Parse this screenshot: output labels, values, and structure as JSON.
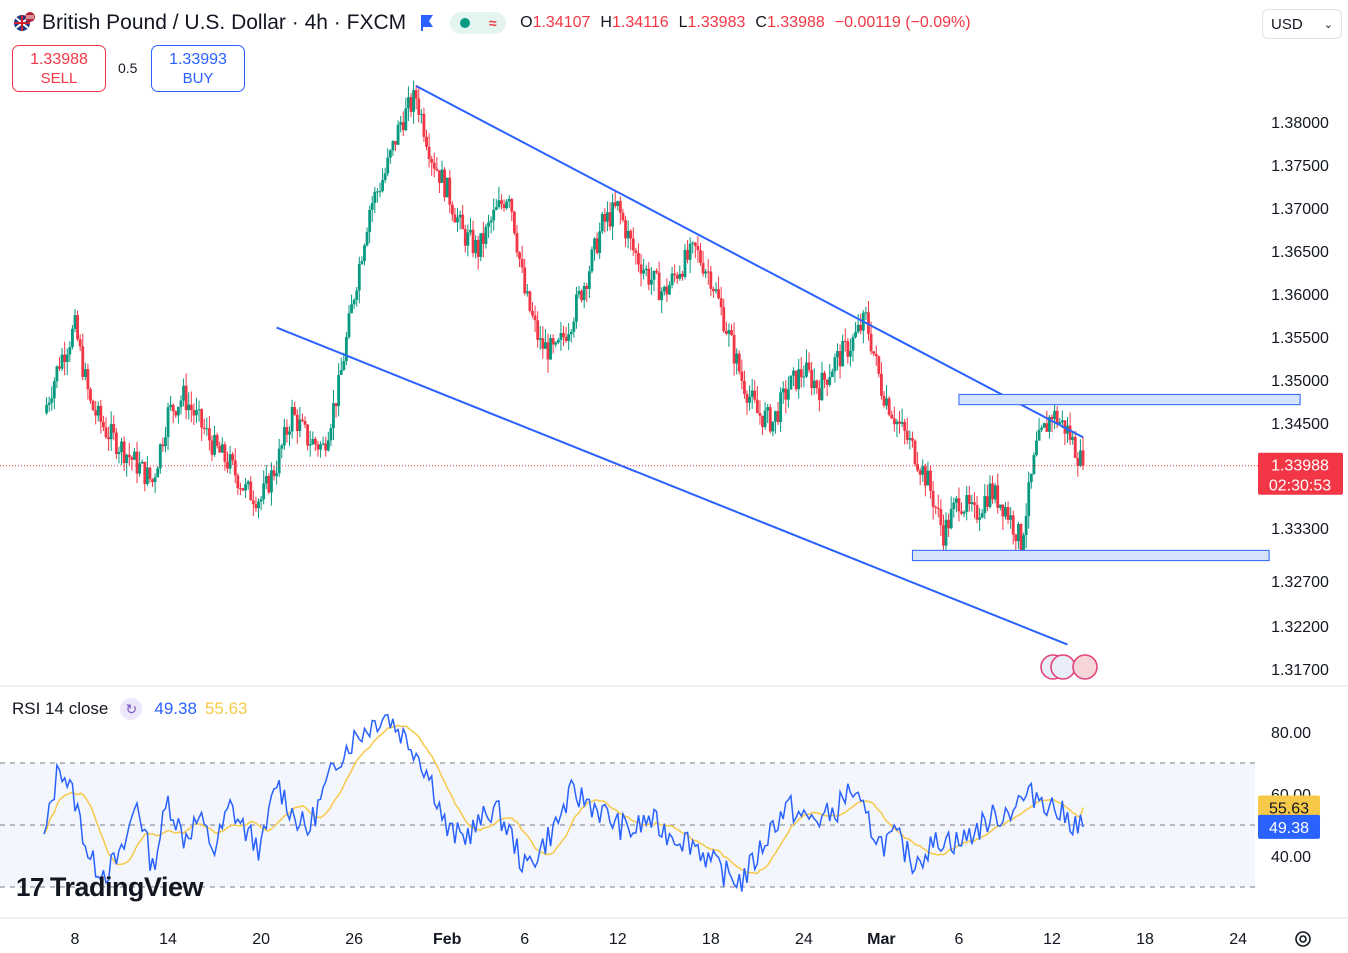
{
  "header": {
    "title": "British Pound / U.S. Dollar · 4h · FXCM",
    "ohlc": {
      "o_label": "O",
      "o": "1.34107",
      "h_label": "H",
      "h": "1.34116",
      "l_label": "L",
      "l": "1.33983",
      "c_label": "C",
      "c": "1.33988",
      "change": "−0.00119 (−0.09%)"
    },
    "icons": [
      "gb-us-flag-icon",
      "flag-marker-icon",
      "market-open-dot-icon",
      "wave-icon"
    ]
  },
  "currency_select": {
    "value": "USD"
  },
  "trade": {
    "sell_price": "1.33988",
    "sell_label": "SELL",
    "spread": "0.5",
    "buy_price": "1.33993",
    "buy_label": "BUY"
  },
  "price_axis": {
    "ticks": [
      "1.38000",
      "1.37500",
      "1.37000",
      "1.36500",
      "1.36000",
      "1.35500",
      "1.35000",
      "1.34500",
      "1.33300",
      "1.32700",
      "1.32200",
      "1.31700"
    ],
    "last_price": "1.33988",
    "countdown": "02:30:53"
  },
  "time_axis": {
    "ticks": [
      "8",
      "14",
      "20",
      "26",
      "Feb",
      "6",
      "12",
      "18",
      "24",
      "Mar",
      "6",
      "12",
      "18",
      "24"
    ]
  },
  "rsi": {
    "label": "RSI 14 close",
    "value": "49.38",
    "ma_value": "55.63",
    "ticks": [
      "80.00",
      "60.00",
      "40.00"
    ],
    "levels": [
      70,
      50,
      30
    ],
    "colors": {
      "rsi": "#2962ff",
      "ma": "#f7c948"
    }
  },
  "branding": {
    "logo_text": "TradingView"
  },
  "colors": {
    "up": "#089981",
    "down": "#f23645",
    "trendline": "#2962ff",
    "zone_fill": "#d6e4fb",
    "last_price": "#f23645"
  },
  "chart_data": {
    "type": "candlestick",
    "symbol": "GBPUSD",
    "interval": "4h",
    "ylim": [
      1.313,
      1.388
    ],
    "x_range": [
      "2025-01-06",
      "2025-03-25"
    ],
    "last_close": 1.33988,
    "trendlines": [
      {
        "from": [
          "2025-01-30",
          1.3842
        ],
        "to": [
          "2025-03-14",
          1.3432
        ]
      },
      {
        "from": [
          "2025-01-21",
          1.356
        ],
        "to": [
          "2025-03-13",
          1.319
        ]
      }
    ],
    "zones": [
      {
        "from": "2025-03-06",
        "to": "2025-03-28",
        "top": 1.3482,
        "bottom": 1.347
      },
      {
        "from": "2025-03-03",
        "to": "2025-03-26",
        "top": 1.33,
        "bottom": 1.3288
      }
    ],
    "close_path": [
      [
        "2025-01-06",
        1.346
      ],
      [
        "2025-01-07",
        1.352
      ],
      [
        "2025-01-08",
        1.356
      ],
      [
        "2025-01-09",
        1.347
      ],
      [
        "2025-01-10",
        1.344
      ],
      [
        "2025-01-11",
        1.342
      ],
      [
        "2025-01-12",
        1.34
      ],
      [
        "2025-01-13",
        1.338
      ],
      [
        "2025-01-14",
        1.346
      ],
      [
        "2025-01-15",
        1.348
      ],
      [
        "2025-01-16",
        1.345
      ],
      [
        "2025-01-17",
        1.342
      ],
      [
        "2025-01-18",
        1.34
      ],
      [
        "2025-01-19",
        1.337
      ],
      [
        "2025-01-20",
        1.336
      ],
      [
        "2025-01-21",
        1.34
      ],
      [
        "2025-01-22",
        1.346
      ],
      [
        "2025-01-23",
        1.343
      ],
      [
        "2025-01-24",
        1.342
      ],
      [
        "2025-01-25",
        1.349
      ],
      [
        "2025-01-26",
        1.36
      ],
      [
        "2025-01-27",
        1.37
      ],
      [
        "2025-01-28",
        1.374
      ],
      [
        "2025-01-29",
        1.38
      ],
      [
        "2025-01-30",
        1.383
      ],
      [
        "2025-01-31",
        1.376
      ],
      [
        "2025-02-01",
        1.372
      ],
      [
        "2025-02-02",
        1.367
      ],
      [
        "2025-02-03",
        1.365
      ],
      [
        "2025-02-04",
        1.369
      ],
      [
        "2025-02-05",
        1.372
      ],
      [
        "2025-02-06",
        1.36
      ],
      [
        "2025-02-07",
        1.354
      ],
      [
        "2025-02-08",
        1.353
      ],
      [
        "2025-02-09",
        1.357
      ],
      [
        "2025-02-10",
        1.362
      ],
      [
        "2025-02-11",
        1.368
      ],
      [
        "2025-02-12",
        1.37
      ],
      [
        "2025-02-13",
        1.365
      ],
      [
        "2025-02-14",
        1.362
      ],
      [
        "2025-02-15",
        1.36
      ],
      [
        "2025-02-16",
        1.363
      ],
      [
        "2025-02-17",
        1.365
      ],
      [
        "2025-02-18",
        1.362
      ],
      [
        "2025-02-19",
        1.356
      ],
      [
        "2025-02-20",
        1.35
      ],
      [
        "2025-02-21",
        1.346
      ],
      [
        "2025-02-22",
        1.345
      ],
      [
        "2025-02-23",
        1.349
      ],
      [
        "2025-02-24",
        1.351
      ],
      [
        "2025-02-25",
        1.349
      ],
      [
        "2025-02-26",
        1.352
      ],
      [
        "2025-02-27",
        1.354
      ],
      [
        "2025-02-28",
        1.357
      ],
      [
        "2025-03-01",
        1.349
      ],
      [
        "2025-03-02",
        1.345
      ],
      [
        "2025-03-03",
        1.342
      ],
      [
        "2025-03-04",
        1.338
      ],
      [
        "2025-03-05",
        1.332
      ],
      [
        "2025-03-06",
        1.336
      ],
      [
        "2025-03-07",
        1.334
      ],
      [
        "2025-03-08",
        1.337
      ],
      [
        "2025-03-09",
        1.335
      ],
      [
        "2025-03-10",
        1.331
      ],
      [
        "2025-03-11",
        1.342
      ],
      [
        "2025-03-12",
        1.346
      ],
      [
        "2025-03-13",
        1.344
      ],
      [
        "2025-03-14",
        1.3399
      ]
    ],
    "rsi_path": [
      [
        "2025-01-06",
        45
      ],
      [
        "2025-01-07",
        70
      ],
      [
        "2025-01-08",
        58
      ],
      [
        "2025-01-09",
        38
      ],
      [
        "2025-01-10",
        35
      ],
      [
        "2025-01-11",
        40
      ],
      [
        "2025-01-12",
        58
      ],
      [
        "2025-01-13",
        36
      ],
      [
        "2025-01-14",
        58
      ],
      [
        "2025-01-15",
        46
      ],
      [
        "2025-01-16",
        52
      ],
      [
        "2025-01-17",
        42
      ],
      [
        "2025-01-18",
        56
      ],
      [
        "2025-01-19",
        48
      ],
      [
        "2025-01-20",
        42
      ],
      [
        "2025-01-21",
        64
      ],
      [
        "2025-01-22",
        54
      ],
      [
        "2025-01-23",
        48
      ],
      [
        "2025-01-24",
        60
      ],
      [
        "2025-01-25",
        72
      ],
      [
        "2025-01-26",
        78
      ],
      [
        "2025-01-27",
        82
      ],
      [
        "2025-01-28",
        86
      ],
      [
        "2025-01-29",
        80
      ],
      [
        "2025-01-30",
        74
      ],
      [
        "2025-01-31",
        64
      ],
      [
        "2025-02-01",
        48
      ],
      [
        "2025-02-02",
        46
      ],
      [
        "2025-02-03",
        50
      ],
      [
        "2025-02-04",
        56
      ],
      [
        "2025-02-05",
        48
      ],
      [
        "2025-02-06",
        36
      ],
      [
        "2025-02-07",
        42
      ],
      [
        "2025-02-08",
        50
      ],
      [
        "2025-02-09",
        60
      ],
      [
        "2025-02-10",
        58
      ],
      [
        "2025-02-11",
        54
      ],
      [
        "2025-02-12",
        50
      ],
      [
        "2025-02-13",
        48
      ],
      [
        "2025-02-14",
        52
      ],
      [
        "2025-02-15",
        48
      ],
      [
        "2025-02-16",
        46
      ],
      [
        "2025-02-17",
        44
      ],
      [
        "2025-02-18",
        38
      ],
      [
        "2025-02-19",
        34
      ],
      [
        "2025-02-20",
        32
      ],
      [
        "2025-02-21",
        40
      ],
      [
        "2025-02-22",
        50
      ],
      [
        "2025-02-23",
        56
      ],
      [
        "2025-02-24",
        52
      ],
      [
        "2025-02-25",
        52
      ],
      [
        "2025-02-26",
        54
      ],
      [
        "2025-02-27",
        62
      ],
      [
        "2025-02-28",
        52
      ],
      [
        "2025-03-01",
        44
      ],
      [
        "2025-03-02",
        46
      ],
      [
        "2025-03-03",
        38
      ],
      [
        "2025-03-04",
        42
      ],
      [
        "2025-03-05",
        46
      ],
      [
        "2025-03-06",
        44
      ],
      [
        "2025-03-07",
        48
      ],
      [
        "2025-03-08",
        52
      ],
      [
        "2025-03-09",
        54
      ],
      [
        "2025-03-10",
        58
      ],
      [
        "2025-03-11",
        60
      ],
      [
        "2025-03-12",
        56
      ],
      [
        "2025-03-13",
        52
      ],
      [
        "2025-03-14",
        49.38
      ]
    ],
    "rsi_ma_last": 55.63
  }
}
